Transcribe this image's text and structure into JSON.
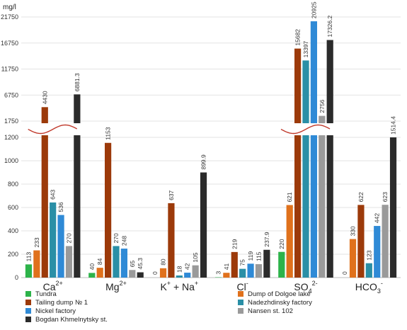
{
  "chart_data": {
    "type": "bar",
    "ylabel": "mg/l",
    "axis_break": {
      "lower_max": 1200,
      "upper_min": 1750,
      "upper_max": 21750
    },
    "yticks_lower": [
      "0",
      "200",
      "400",
      "600",
      "800",
      "1000",
      "1200"
    ],
    "yticks_upper": [
      "1750",
      "6750",
      "11750",
      "16750",
      "21750"
    ],
    "categories": [
      {
        "main": "Ca",
        "sup": "2+",
        "tail": ""
      },
      {
        "main": "Mg",
        "sup": "2+",
        "tail": ""
      },
      {
        "main": "K",
        "sup": "+",
        "tail": " + Na",
        "sup2": "+"
      },
      {
        "main": "Cl",
        "sup": "-",
        "tail": ""
      },
      {
        "main": "SO",
        "sub": "4",
        "sup": "2-",
        "tail": ""
      },
      {
        "main": "HCO",
        "sub": "3",
        "sup": "-",
        "tail": ""
      }
    ],
    "series": [
      {
        "name": "Tundra",
        "color": "#2db34a",
        "values": [
          113,
          40,
          0,
          3,
          220,
          0
        ],
        "labels": [
          "113",
          "40",
          "0",
          "3",
          "220",
          "0"
        ]
      },
      {
        "name": "Dump of Dolgoe lake",
        "color": "#e0711c",
        "values": [
          233,
          84,
          80,
          41,
          621,
          330
        ],
        "labels": [
          "233",
          "84",
          "80",
          "41",
          "621",
          "330"
        ]
      },
      {
        "name": "Tailing dump № 1",
        "color": "#9c3a0a",
        "values": [
          4430,
          1153,
          637,
          219,
          15682,
          622
        ],
        "labels": [
          "4430",
          "1153",
          "637",
          "219",
          "15682",
          "622"
        ]
      },
      {
        "name": "Nadezhdinsky factory",
        "color": "#2a8fa6",
        "values": [
          643,
          270,
          18,
          75,
          13397,
          123
        ],
        "labels": [
          "643",
          "270",
          "18",
          "75",
          "13397",
          "123"
        ]
      },
      {
        "name": "Nickel factory",
        "color": "#2f8ad6",
        "values": [
          536,
          248,
          42,
          119,
          20925,
          442
        ],
        "labels": [
          "536",
          "248",
          "42",
          "119",
          "20925",
          "442"
        ]
      },
      {
        "name": "Nansen st. 102",
        "color": "#9a9a9a",
        "values": [
          270,
          65,
          105,
          115,
          2756,
          623
        ],
        "labels": [
          "270",
          "65",
          "105",
          "115",
          "2756",
          "623"
        ]
      },
      {
        "name": "Bogdan Khmelnytsky st.",
        "color": "#2b2b2b",
        "values": [
          6881.3,
          45.3,
          899.9,
          237.9,
          17326.2,
          1514.4
        ],
        "labels": [
          "6881.3",
          "45.3",
          "899.9",
          "237.9",
          "17326.2",
          "1514.4"
        ]
      }
    ],
    "legend_placement": "bottom"
  }
}
